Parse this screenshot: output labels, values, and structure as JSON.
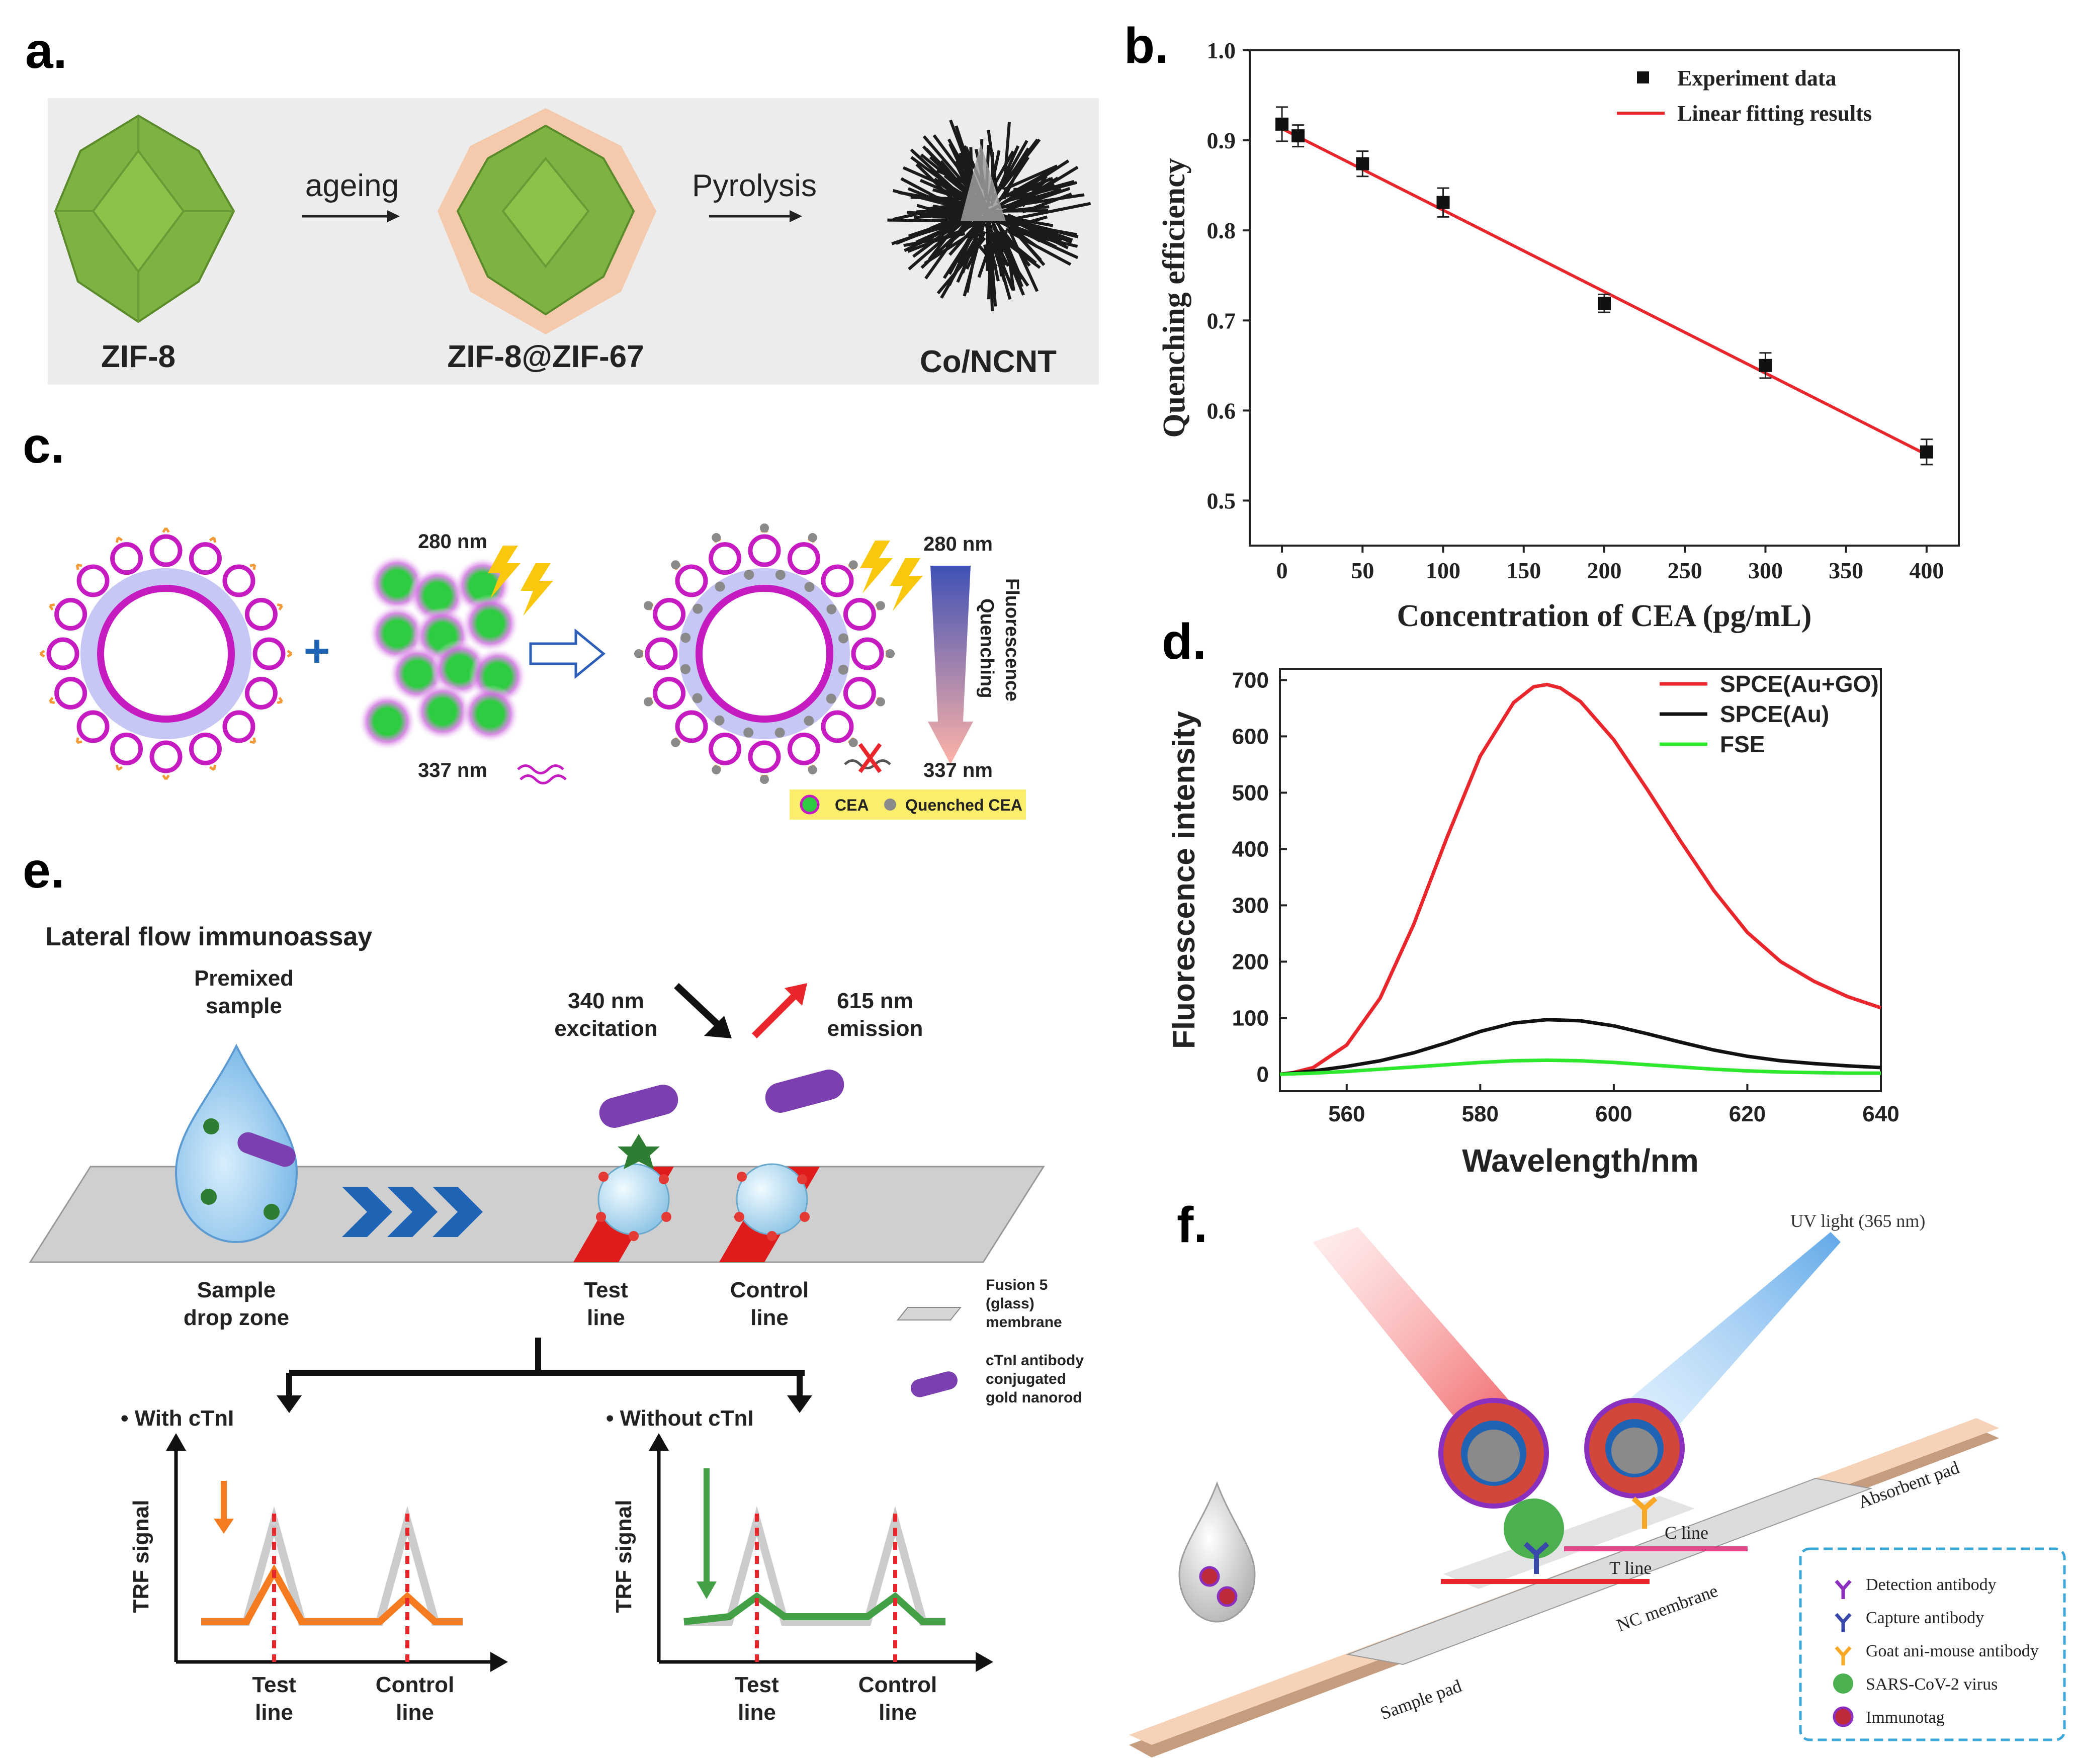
{
  "panels": {
    "a": {
      "label": "a.",
      "steps": [
        "ageing",
        "Pyrolysis"
      ],
      "materials": [
        "ZIF-8",
        "ZIF-8@ZIF-67",
        "Co/NCNT"
      ]
    },
    "b": {
      "label": "b."
    },
    "c": {
      "label": "c.",
      "wl_280_left": "280 nm",
      "wl_337_left": "337 nm",
      "wl_280_right": "280 nm",
      "wl_337_right": "337 nm",
      "arrow_label_1": "Fluorescence",
      "arrow_label_2": "Quenching",
      "legend_cea": "CEA",
      "legend_quenched": "Quenched CEA"
    },
    "d": {
      "label": "d."
    },
    "e": {
      "label": "e.",
      "title": "Lateral flow immunoassay",
      "premixed_1": "Premixed",
      "premixed_2": "sample",
      "excitation_1": "340 nm",
      "excitation_2": "excitation",
      "emission_1": "615 nm",
      "emission_2": "emission",
      "sample_zone_1": "Sample",
      "sample_zone_2": "drop zone",
      "test_1": "Test",
      "test_2": "line",
      "control_1": "Control",
      "control_2": "line",
      "legend_membrane": [
        "Fusion 5",
        "(glass)",
        "membrane"
      ],
      "legend_antibody": [
        "cTnI antibody",
        "conjugated",
        "gold nanorod"
      ],
      "with_ctni": "• With cTnI",
      "without_ctni": "• Without cTnI",
      "trf_signal": "TRF signal"
    },
    "f": {
      "label": "f.",
      "uv_light": "UV light (365 nm)",
      "c_line": "C line",
      "t_line": "T line",
      "nc_membrane": "NC membrane",
      "absorbent_pad": "Absorbent pad",
      "sample_pad": "Sample pad",
      "legend": [
        "Detection antibody",
        "Capture antibody",
        "Goat ani-mouse antibody",
        "SARS-CoV-2 virus",
        "Immunotag"
      ]
    }
  },
  "colors": {
    "green": "#7cb342",
    "magenta": "#c51bc0",
    "red": "#e8262b",
    "blue": "#1f64b4",
    "orange": "#f47b20",
    "lflgreen": "#43a047"
  },
  "chart_data": [
    {
      "type": "scatter",
      "title": "",
      "xlabel": "Concentration of CEA (pg/mL)",
      "ylabel": "Quenching efficiency",
      "xlim": [
        -20,
        420
      ],
      "ylim": [
        0.45,
        1.0
      ],
      "xticks": [
        0,
        50,
        100,
        150,
        200,
        250,
        300,
        350,
        400
      ],
      "yticks": [
        0.5,
        0.6,
        0.7,
        0.8,
        0.9,
        1.0
      ],
      "series": [
        {
          "name": "Experiment data",
          "x": [
            0,
            10,
            50,
            100,
            200,
            300,
            400
          ],
          "y": [
            0.918,
            0.905,
            0.874,
            0.831,
            0.719,
            0.65,
            0.554
          ],
          "yerr": [
            0.019,
            0.012,
            0.014,
            0.016,
            0.01,
            0.014,
            0.014
          ]
        },
        {
          "name": "Linear fitting results",
          "x": [
            0,
            400
          ],
          "y": [
            0.913,
            0.551
          ]
        }
      ],
      "legend": "top-right"
    },
    {
      "type": "line",
      "title": "",
      "xlabel": "Wavelength/nm",
      "ylabel": "Fluorescence intensity",
      "xlim": [
        550,
        640
      ],
      "ylim": [
        -30,
        720
      ],
      "xticks": [
        560,
        580,
        600,
        620,
        640
      ],
      "yticks": [
        0,
        100,
        200,
        300,
        400,
        500,
        600,
        700
      ],
      "series": [
        {
          "name": "SPCE(Au+GO)",
          "x": [
            550,
            552,
            555,
            560,
            565,
            570,
            575,
            580,
            585,
            588,
            590,
            592,
            595,
            600,
            605,
            610,
            615,
            620,
            625,
            630,
            635,
            640
          ],
          "y": [
            0,
            3,
            12,
            52,
            135,
            265,
            420,
            565,
            660,
            688,
            692,
            686,
            662,
            594,
            506,
            414,
            326,
            252,
            200,
            165,
            138,
            118
          ]
        },
        {
          "name": "SPCE(Au)",
          "x": [
            550,
            555,
            560,
            565,
            570,
            575,
            580,
            585,
            590,
            595,
            600,
            605,
            610,
            615,
            620,
            625,
            630,
            635,
            640
          ],
          "y": [
            0,
            6,
            14,
            24,
            38,
            56,
            76,
            91,
            97,
            95,
            86,
            72,
            57,
            43,
            32,
            24,
            19,
            15,
            12
          ]
        },
        {
          "name": "FSE",
          "x": [
            550,
            555,
            560,
            565,
            570,
            575,
            580,
            585,
            590,
            595,
            600,
            605,
            610,
            615,
            620,
            625,
            630,
            635,
            640
          ],
          "y": [
            0,
            2,
            5,
            9,
            13,
            17,
            21,
            24,
            25,
            24,
            21,
            17,
            13,
            9,
            6,
            4,
            3,
            2,
            2
          ]
        }
      ],
      "legend": "top-right"
    }
  ]
}
